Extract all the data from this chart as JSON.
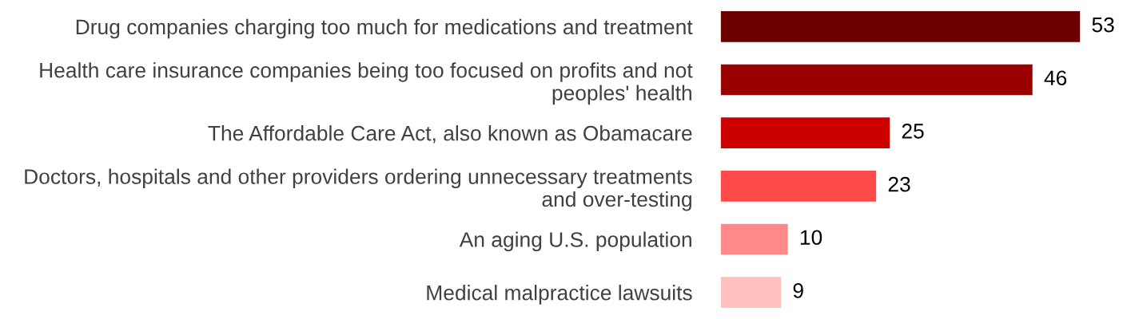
{
  "chart_data": {
    "type": "bar",
    "orientation": "horizontal",
    "data_labels": true,
    "categories": [
      "Drug companies charging too much for medications and treatment",
      "Health care insurance companies being too focused on profits and not peoples' health",
      "The Affordable Care Act, also known as Obamacare",
      "Doctors, hospitals and other providers ordering unnecessary treatments and over-testing",
      "An aging U.S. population",
      "Medical malpractice lawsuits"
    ],
    "values": [
      53,
      46,
      25,
      23,
      10,
      9
    ],
    "colors": [
      "#6b0000",
      "#990000",
      "#cc0000",
      "#ff4a4a",
      "#ff8888",
      "#ffc0c0"
    ]
  }
}
